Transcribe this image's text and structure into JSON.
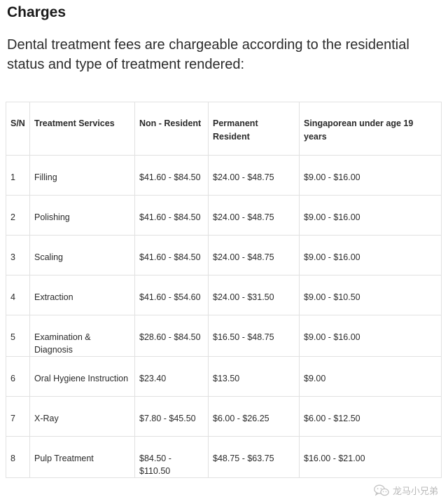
{
  "section": {
    "title": "Charges",
    "intro": "Dental treatment fees are chargeable according to the residential status and type of treatment rendered:"
  },
  "table": {
    "headers": [
      "S/N",
      "Treatment Services",
      "Non - Resident",
      "Permanent Resident",
      "Singaporean under age 19 years"
    ],
    "rows": [
      {
        "sn": "1",
        "service": "Filling",
        "non_resident": "$41.60 - $84.50",
        "permanent_resident": "$24.00 - $48.75",
        "singaporean_u19": "$9.00 - $16.00"
      },
      {
        "sn": "2",
        "service": "Polishing",
        "non_resident": "$41.60 - $84.50",
        "permanent_resident": "$24.00 - $48.75",
        "singaporean_u19": "$9.00 - $16.00"
      },
      {
        "sn": "3",
        "service": "Scaling",
        "non_resident": "$41.60 - $84.50",
        "permanent_resident": "$24.00 - $48.75",
        "singaporean_u19": "$9.00 - $16.00"
      },
      {
        "sn": "4",
        "service": "Extraction",
        "non_resident": "$41.60 - $54.60",
        "permanent_resident": "$24.00 - $31.50",
        "singaporean_u19": "$9.00 - $10.50"
      },
      {
        "sn": "5",
        "service": "Examination & Diagnosis",
        "non_resident": "$28.60 - $84.50",
        "permanent_resident": "$16.50 - $48.75",
        "singaporean_u19": "$9.00 - $16.00"
      },
      {
        "sn": "6",
        "service": "Oral Hygiene Instruction",
        "non_resident": "$23.40",
        "permanent_resident": "$13.50",
        "singaporean_u19": "$9.00"
      },
      {
        "sn": "7",
        "service": "X-Ray",
        "non_resident": "$7.80 - $45.50",
        "permanent_resident": "$6.00 - $26.25",
        "singaporean_u19": "$6.00 - $12.50"
      },
      {
        "sn": "8",
        "service": "Pulp Treatment",
        "non_resident": "$84.50 - $110.50",
        "permanent_resident": "$48.75 - $63.75",
        "singaporean_u19": "$16.00 - $21.00"
      }
    ]
  },
  "watermark": {
    "text": "龙马小兄弟",
    "icon": "wechat-icon"
  }
}
